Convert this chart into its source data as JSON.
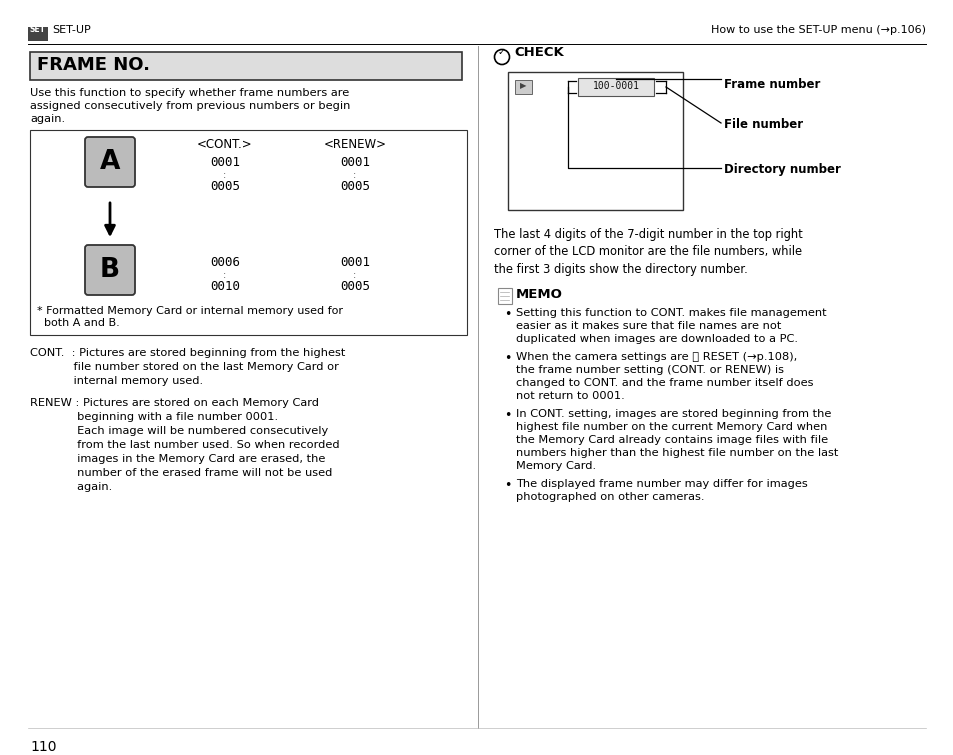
{
  "page_bg": "#ffffff",
  "page_num": "110",
  "header_left": "SET-UP",
  "header_right": "How to use the SET-UP menu (→p.106)",
  "title": "FRAME NO.",
  "intro_text": "Use this function to specify whether frame numbers are\nassigned consecutively from previous numbers or begin\nagain.",
  "box_cont_label": "<CONT.>",
  "box_renew_label": "<RENEW>",
  "box_footnote": "* Formatted Memory Card or internal memory used for\n  both A and B.",
  "check_label": "CHECK",
  "frame_number_label": "Frame number",
  "file_number_label": "File number",
  "directory_number_label": "Directory number",
  "lcd_display": "100-0001",
  "check_text": "The last 4 digits of the 7-digit number in the top right\ncorner of the LCD monitor are the file numbers, while\nthe first 3 digits show the directory number.",
  "memo_label": "MEMO",
  "memo_bullets": [
    "Setting this function to CONT. makes file management\neasier as it makes sure that file names are not\nduplicated when images are downloaded to a PC.",
    "When the camera settings are ⓢ RESET (→p.108),\nthe frame number setting (CONT. or RENEW) is\nchanged to CONT. and the frame number itself does\nnot return to 0001.",
    "In CONT. setting, images are stored beginning from the\nhighest file number on the current Memory Card when\nthe Memory Card already contains image files with file\nnumbers higher than the highest file number on the last\nMemory Card.",
    "The displayed frame number may differ for images\nphotographed on other cameras."
  ],
  "cont_line1": "CONT.  : Pictures are stored beginning from the highest",
  "cont_line2": "            file number stored on the last Memory Card or",
  "cont_line3": "            internal memory used.",
  "renew_line1": "RENEW : Pictures are stored on each Memory Card",
  "renew_line2": "             beginning with a file number 0001.",
  "renew_line3": "             Each image will be numbered consecutively",
  "renew_line4": "             from the last number used. So when recorded",
  "renew_line5": "             images in the Memory Card are erased, the",
  "renew_line6": "             number of the erased frame will not be used",
  "renew_line7": "             again."
}
